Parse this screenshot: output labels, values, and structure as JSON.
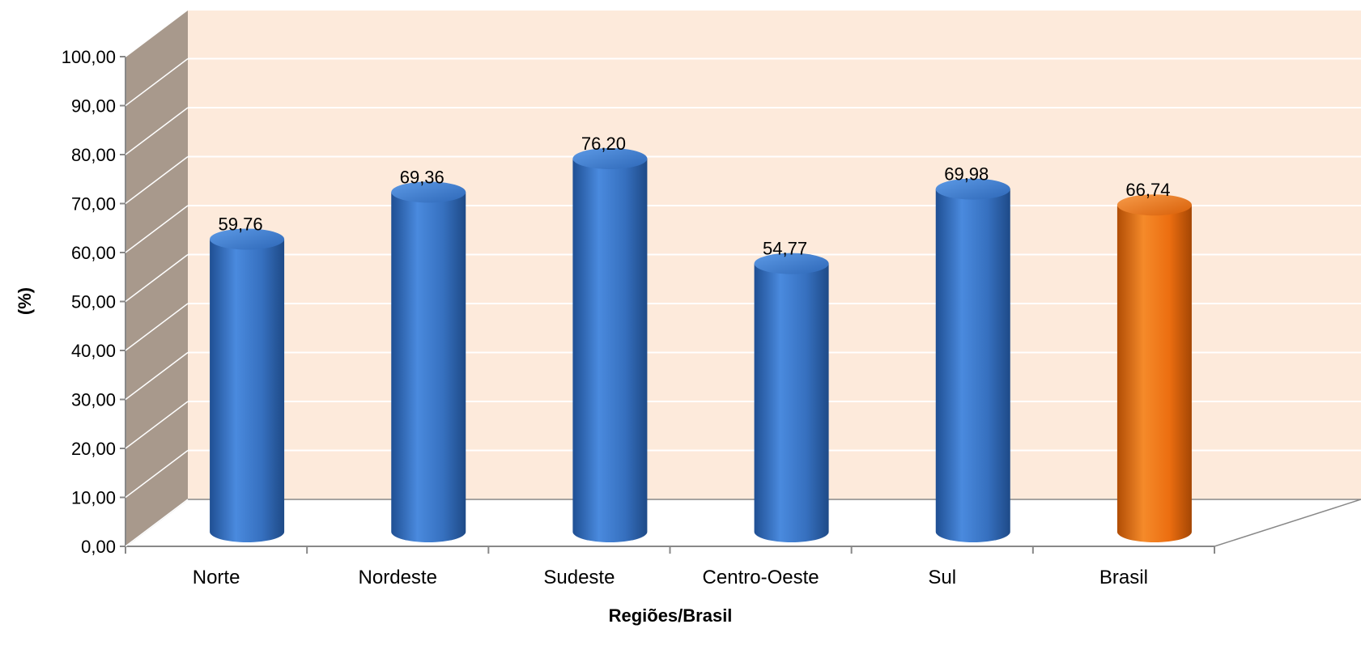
{
  "chart_data": {
    "type": "bar",
    "title": "",
    "xlabel": "Regiões/Brasil",
    "ylabel": "(%)",
    "categories": [
      "Norte",
      "Nordeste",
      "Sudeste",
      "Centro-Oeste",
      "Sul",
      "Brasil"
    ],
    "values": [
      59.76,
      69.36,
      76.2,
      54.77,
      69.98,
      66.74
    ],
    "data_labels": [
      "59,76",
      "69,36",
      "76,20",
      "54,77",
      "69,98",
      "66,74"
    ],
    "y_ticks": [
      "0,00",
      "10,00",
      "20,00",
      "30,00",
      "40,00",
      "50,00",
      "60,00",
      "70,00",
      "80,00",
      "90,00",
      "100,00"
    ],
    "ylim": [
      0,
      100
    ],
    "grid": true,
    "legend": "none",
    "colors": {
      "bar": "#3a78c8",
      "highlight_bar": "#f07010",
      "back_wall": "#fdeadb",
      "side_wall": "#a8998c",
      "gridline": "#ffffff",
      "axis": "#888888"
    }
  }
}
